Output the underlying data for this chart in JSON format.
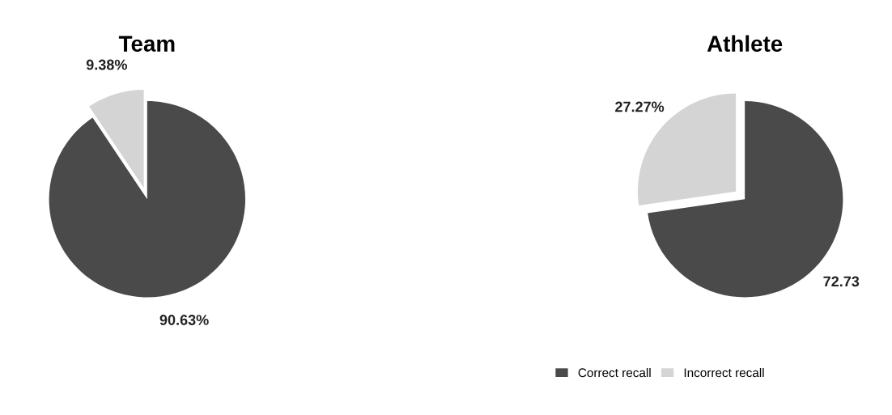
{
  "chart_data": [
    {
      "type": "pie",
      "title": "Team",
      "categories": [
        "Correct recall",
        "Incorrect recall"
      ],
      "values": [
        90.63,
        9.38
      ],
      "colors": [
        "#4a4a4a",
        "#d4d4d4"
      ],
      "value_labels": [
        "90.63%",
        "9.38%"
      ],
      "legend": "bottom"
    },
    {
      "type": "pie",
      "title": "Athlete",
      "categories": [
        null,
        null
      ],
      "values": [
        72.73,
        27.27
      ],
      "colors": [
        "#4a4a4a",
        "#d4d4d4"
      ],
      "value_labels": [
        "72.73",
        "27.27%"
      ]
    }
  ]
}
